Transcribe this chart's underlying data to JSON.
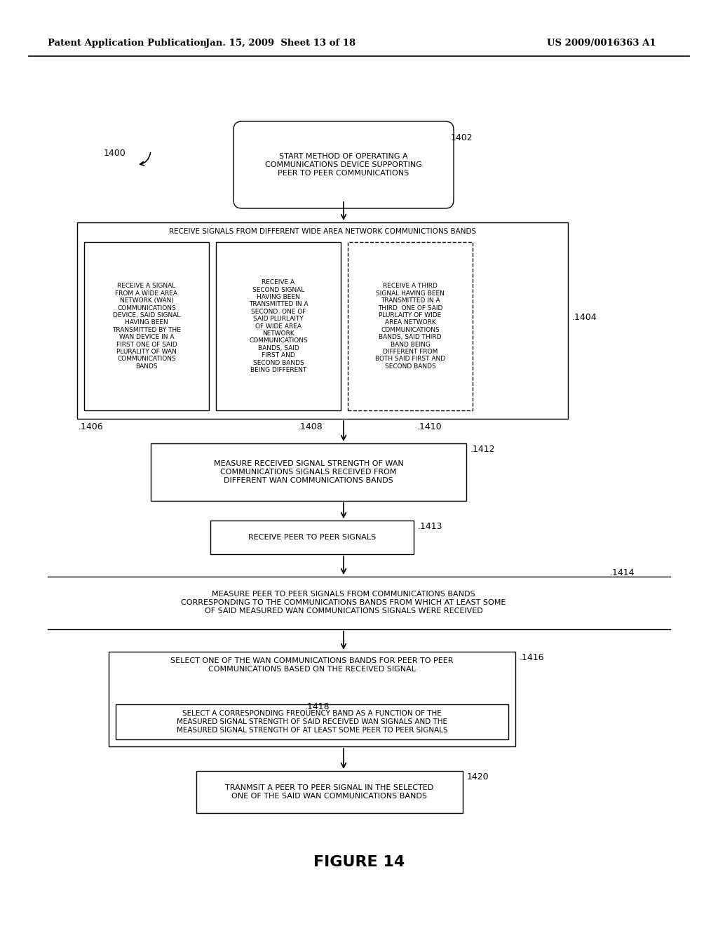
{
  "header_left": "Patent Application Publication",
  "header_mid": "Jan. 15, 2009  Sheet 13 of 18",
  "header_right": "US 2009/0016363 A1",
  "figure_label": "FIGURE 14",
  "bg_color": "#ffffff",
  "text_color": "#000000",
  "start_text": "START METHOD OF OPERATING A\nCOMMUNICATIONS DEVICE SUPPORTING\nPEER TO PEER COMMUNICATIONS",
  "outer_title": "RECEIVE SIGNALS FROM DIFFERENT WIDE AREA NETWORK COMMUNICTIONS BANDS",
  "sub1_text": "RECEIVE A SIGNAL\nFROM A WIDE AREA\nNETWORK (WAN)\nCOMMUNICATIONS\nDEVICE, SAID SIGNAL\nHAVING BEEN\nTRANSMITTED BY THE\nWAN DEVICE IN A\nFIRST ONE OF SAID\nPLURALITY OF WAN\nCOMMUNICATIONS\nBANDS",
  "sub2_text": "RECEIVE A\nSECOND SIGNAL\nHAVING BEEN\nTRANSMITTED IN A\nSECOND  ONE OF\nSAID PLURLAITY\nOF WIDE AREA\nNETWORK\nCOMMUNICATIONS\nBANDS, SAID\nFIRST AND\nSECOND BANDS\nBEING DIFFERENT",
  "sub3_text": "RECEIVE A THIRD\nSIGNAL HAVING BEEN\nTRANSMITTED IN A\nTHIRD  ONE OF SAID\nPLURLAITY OF WIDE\nAREA NETWORK\nCOMMUNICATIONS\nBANDS, SAID THIRD\nBAND BEING\nDIFFERENT FROM\nBOTH SAID FIRST AND\nSECOND BANDS",
  "measure_wan_text": "MEASURE RECEIVED SIGNAL STRENGTH OF WAN\nCOMMUNICATIONS SIGNALS RECEIVED FROM\nDIFFERENT WAN COMMUNICATIONS BANDS",
  "recv_p2p_text": "RECEIVE PEER TO PEER SIGNALS",
  "measure_p2p_text": "MEASURE PEER TO PEER SIGNALS FROM COMMUNICATIONS BANDS\nCORRESPONDING TO THE COMMUNICATIONS BANDS FROM WHICH AT LEAST SOME\nOF SAID MEASURED WAN COMMUNICATIONS SIGNALS WERE RECEIVED",
  "select_title_text": "SELECT ONE OF THE WAN COMMUNICATIONS BANDS FOR PEER TO PEER\nCOMMUNICATIONS BASED ON THE RECEIVED SIGNAL",
  "select_sub_text": "SELECT A CORRESPONDING FREQUENCY BAND AS A FUNCTION OF THE\nMEASURED SIGNAL STRENGTH OF SAID RECEIVED WAN SIGNALS AND THE\nMEASURED SIGNAL STRENGTH OF AT LEAST SOME PEER TO PEER SIGNALS",
  "transmit_text": "TRANMSIT A PEER TO PEER SIGNAL IN THE SELECTED\nONE OF THE SAID WAN COMMUNICATIONS BANDS"
}
